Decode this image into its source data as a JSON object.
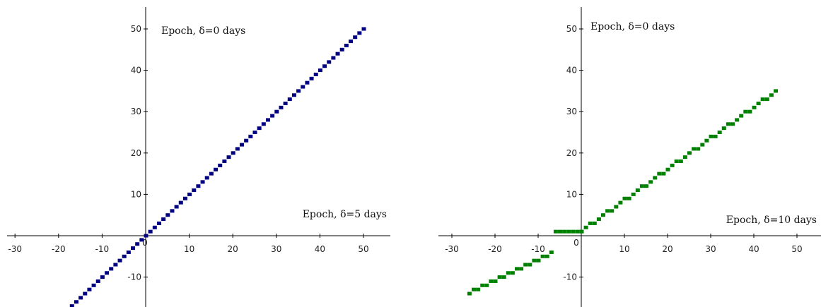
{
  "chart_data": [
    {
      "type": "scatter",
      "xlim": [
        -33,
        55
      ],
      "ylim": [
        -17,
        55
      ],
      "x_ticks": [
        "-30",
        "-20",
        "-10",
        "0",
        "10",
        "20",
        "30",
        "40",
        "50"
      ],
      "y_ticks": [
        "50",
        "40",
        "30",
        "20",
        "10",
        "-10"
      ],
      "annotations": {
        "top": "Epoch, δ=0 days",
        "right": "Epoch, δ=5 days"
      },
      "color": "#000080",
      "series": [
        {
          "segments": [
            {
              "x0": -20,
              "x1": 50,
              "slope": 1,
              "intercept": 0,
              "step": 1
            }
          ]
        }
      ]
    },
    {
      "type": "scatter",
      "xlim": [
        -33,
        55
      ],
      "ylim": [
        -17,
        55
      ],
      "x_ticks": [
        "-30",
        "-20",
        "-10",
        "0",
        "10",
        "20",
        "30",
        "40",
        "50"
      ],
      "y_ticks": [
        "50",
        "40",
        "30",
        "20",
        "10",
        "-10"
      ],
      "annotations": {
        "top": "Epoch, δ=0 days",
        "right": "Epoch, δ=10 days"
      },
      "color": "#008000",
      "series": [
        {
          "segments": [
            {
              "x0": -26,
              "x1": -7,
              "slope": 0.5,
              "intercept": -1,
              "step": 1
            },
            {
              "x0": -6,
              "x1": 0,
              "slope": 0,
              "intercept": 1,
              "step": 1
            },
            {
              "x0": 0,
              "x1": 45,
              "slope": 0.75,
              "intercept": 1,
              "step": 1
            }
          ]
        }
      ]
    }
  ]
}
